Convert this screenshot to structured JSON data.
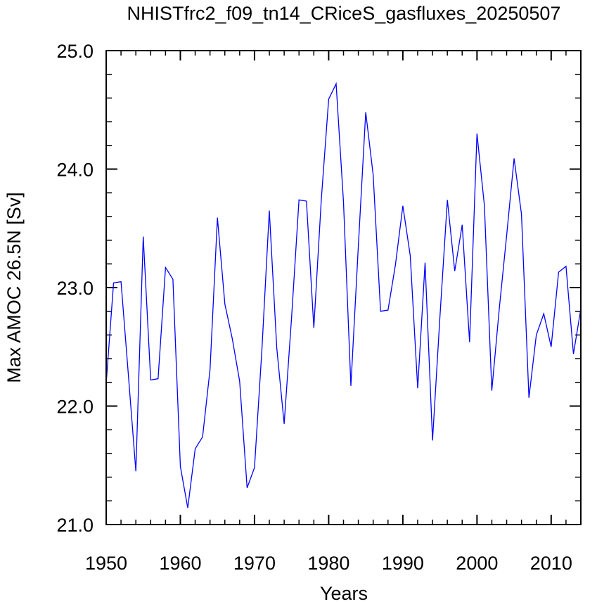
{
  "chart_data": {
    "type": "line",
    "title": "NHISTfrc2_f09_tn14_CRiceS_gasfluxes_20250507",
    "xlabel": "Years",
    "ylabel": "Max AMOC 26.5N [Sv]",
    "xlim": [
      1950,
      2014
    ],
    "ylim": [
      21.0,
      25.0
    ],
    "xticks": [
      1950,
      1960,
      1970,
      1980,
      1990,
      2000,
      2010
    ],
    "xtick_labels": [
      "1950",
      "1960",
      "1970",
      "1980",
      "1990",
      "2000",
      "2010"
    ],
    "yticks": [
      21.0,
      22.0,
      23.0,
      24.0,
      25.0
    ],
    "ytick_labels": [
      "21.0",
      "22.0",
      "23.0",
      "24.0",
      "25.0"
    ],
    "grid": false,
    "line_color": "#0000ff",
    "series": [
      {
        "x": [
          1950,
          1951,
          1952,
          1953,
          1954,
          1955,
          1956,
          1957,
          1958,
          1959,
          1960,
          1961,
          1962,
          1963,
          1964,
          1965,
          1966,
          1967,
          1968,
          1969,
          1970,
          1971,
          1972,
          1973,
          1974,
          1975,
          1976,
          1977,
          1978,
          1979,
          1980,
          1981,
          1982,
          1983,
          1984,
          1985,
          1986,
          1987,
          1988,
          1989,
          1990,
          1991,
          1992,
          1993,
          1994,
          1995,
          1996,
          1997,
          1998,
          1999,
          2000,
          2001,
          2002,
          2003,
          2004,
          2005,
          2006,
          2007,
          2008,
          2009,
          2010,
          2011,
          2012,
          2013,
          2014
        ],
        "values": [
          22.19,
          23.04,
          23.05,
          22.26,
          21.45,
          23.43,
          22.22,
          22.23,
          23.17,
          23.07,
          21.49,
          21.14,
          21.64,
          21.74,
          22.31,
          23.59,
          22.86,
          22.57,
          22.21,
          21.31,
          21.48,
          22.48,
          23.65,
          22.49,
          21.85,
          22.75,
          23.74,
          23.73,
          22.66,
          23.74,
          24.59,
          24.72,
          23.72,
          22.17,
          23.35,
          24.48,
          23.95,
          22.8,
          22.81,
          23.19,
          23.69,
          23.27,
          22.15,
          23.21,
          21.71,
          22.75,
          23.74,
          23.14,
          23.53,
          22.54,
          24.3,
          23.69,
          22.13,
          22.82,
          23.44,
          24.09,
          23.62,
          22.07,
          22.6,
          22.78,
          22.5,
          23.13,
          23.18,
          22.44,
          22.82
        ]
      }
    ]
  }
}
